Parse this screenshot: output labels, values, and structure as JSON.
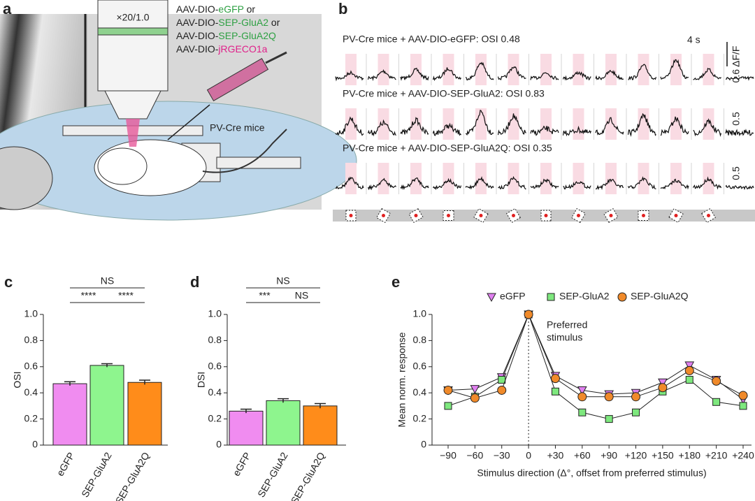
{
  "panel_a": {
    "label": "a",
    "objective": "×20/1.0",
    "mouse": "PV-Cre mice",
    "constructs": [
      [
        {
          "text": "AAV-DIO-"
        },
        {
          "text": "eGFP",
          "color": "#2ea043"
        },
        {
          "text": " or"
        }
      ],
      [
        {
          "text": "AAV-DIO-"
        },
        {
          "text": "SEP-GluA2",
          "color": "#2ea043"
        },
        {
          "text": " or"
        }
      ],
      [
        {
          "text": "AAV-DIO-"
        },
        {
          "text": "SEP-GluA2Q",
          "color": "#2ea043"
        }
      ],
      [
        {
          "text": "AAV-DIO-"
        },
        {
          "text": "jRGECO1a",
          "color": "#e0208a"
        }
      ]
    ]
  },
  "panel_b": {
    "label": "b",
    "time_scale": "4 s",
    "rows": [
      {
        "title": "PV-Cre mice + AAV-DIO-eGFP: OSI 0.48",
        "scale": "0.6 ΔF/F"
      },
      {
        "title": "PV-Cre mice + AAV-DIO-SEP-GluA2: OSI 0.83",
        "scale": "0.5"
      },
      {
        "title": "PV-Cre mice + AAV-DIO-SEP-GluA2Q: OSI 0.35",
        "scale": "0.5"
      }
    ]
  },
  "chart_data": [
    {
      "panel": "c",
      "type": "bar",
      "ylabel": "OSI",
      "categories": [
        "eGFP",
        "SEP-GluA2",
        "SEP-GluA2Q"
      ],
      "values": [
        0.47,
        0.61,
        0.48
      ],
      "errors": [
        0.015,
        0.013,
        0.017
      ],
      "colors": [
        "#f08cf0",
        "#8ef58e",
        "#ff8c1a"
      ],
      "ylim": [
        0,
        1
      ],
      "yticks": [
        0,
        0.2,
        0.4,
        0.6,
        0.8,
        {
          "value": 1,
          "label": "1.0"
        }
      ],
      "annotations": [
        "NS",
        "****",
        "****"
      ]
    },
    {
      "panel": "d",
      "type": "bar",
      "ylabel": "DSI",
      "categories": [
        "eGFP",
        "SEP-GluA2",
        "SEP-GluA2Q"
      ],
      "values": [
        0.26,
        0.34,
        0.3
      ],
      "errors": [
        0.015,
        0.015,
        0.018
      ],
      "colors": [
        "#f08cf0",
        "#8ef58e",
        "#ff8c1a"
      ],
      "ylim": [
        0,
        1
      ],
      "yticks": [
        0,
        0.2,
        0.4,
        0.6,
        0.8,
        {
          "value": 1,
          "label": "1.0"
        }
      ],
      "annotations": [
        "NS",
        "***",
        "NS"
      ]
    },
    {
      "panel": "e",
      "type": "line",
      "ylabel": "Mean norm. response",
      "xlabel": "Stimulus direction (Δ°, offset from preferred stimulus)",
      "categories": [
        "−90",
        "−60",
        "−30",
        "0",
        "+30",
        "+60",
        "+90",
        "+120",
        "+150",
        "+180",
        "+210",
        "+240"
      ],
      "series": [
        {
          "name": "eGFP",
          "color": "#e080f0",
          "marker": "triangle",
          "values": [
            0.42,
            0.43,
            0.52,
            1,
            0.53,
            0.42,
            0.39,
            0.4,
            0.48,
            0.61,
            0.5,
            0.35
          ]
        },
        {
          "name": "SEP-GluA2",
          "color": "#7ee87e",
          "marker": "square",
          "values": [
            0.3,
            0.37,
            0.5,
            1,
            0.41,
            0.25,
            0.2,
            0.25,
            0.41,
            0.5,
            0.33,
            0.3
          ]
        },
        {
          "name": "SEP-GluA2Q",
          "color": "#f08a2a",
          "marker": "circle",
          "values": [
            0.42,
            0.36,
            0.42,
            1,
            0.51,
            0.37,
            0.37,
            0.37,
            0.44,
            0.57,
            0.49,
            0.38
          ]
        }
      ],
      "ylim": [
        0,
        1
      ],
      "yticks": [
        0,
        0.2,
        0.4,
        0.6,
        0.8,
        {
          "value": 1,
          "label": "1.0"
        }
      ],
      "annotation": [
        "Preferred",
        "stimulus"
      ]
    }
  ]
}
